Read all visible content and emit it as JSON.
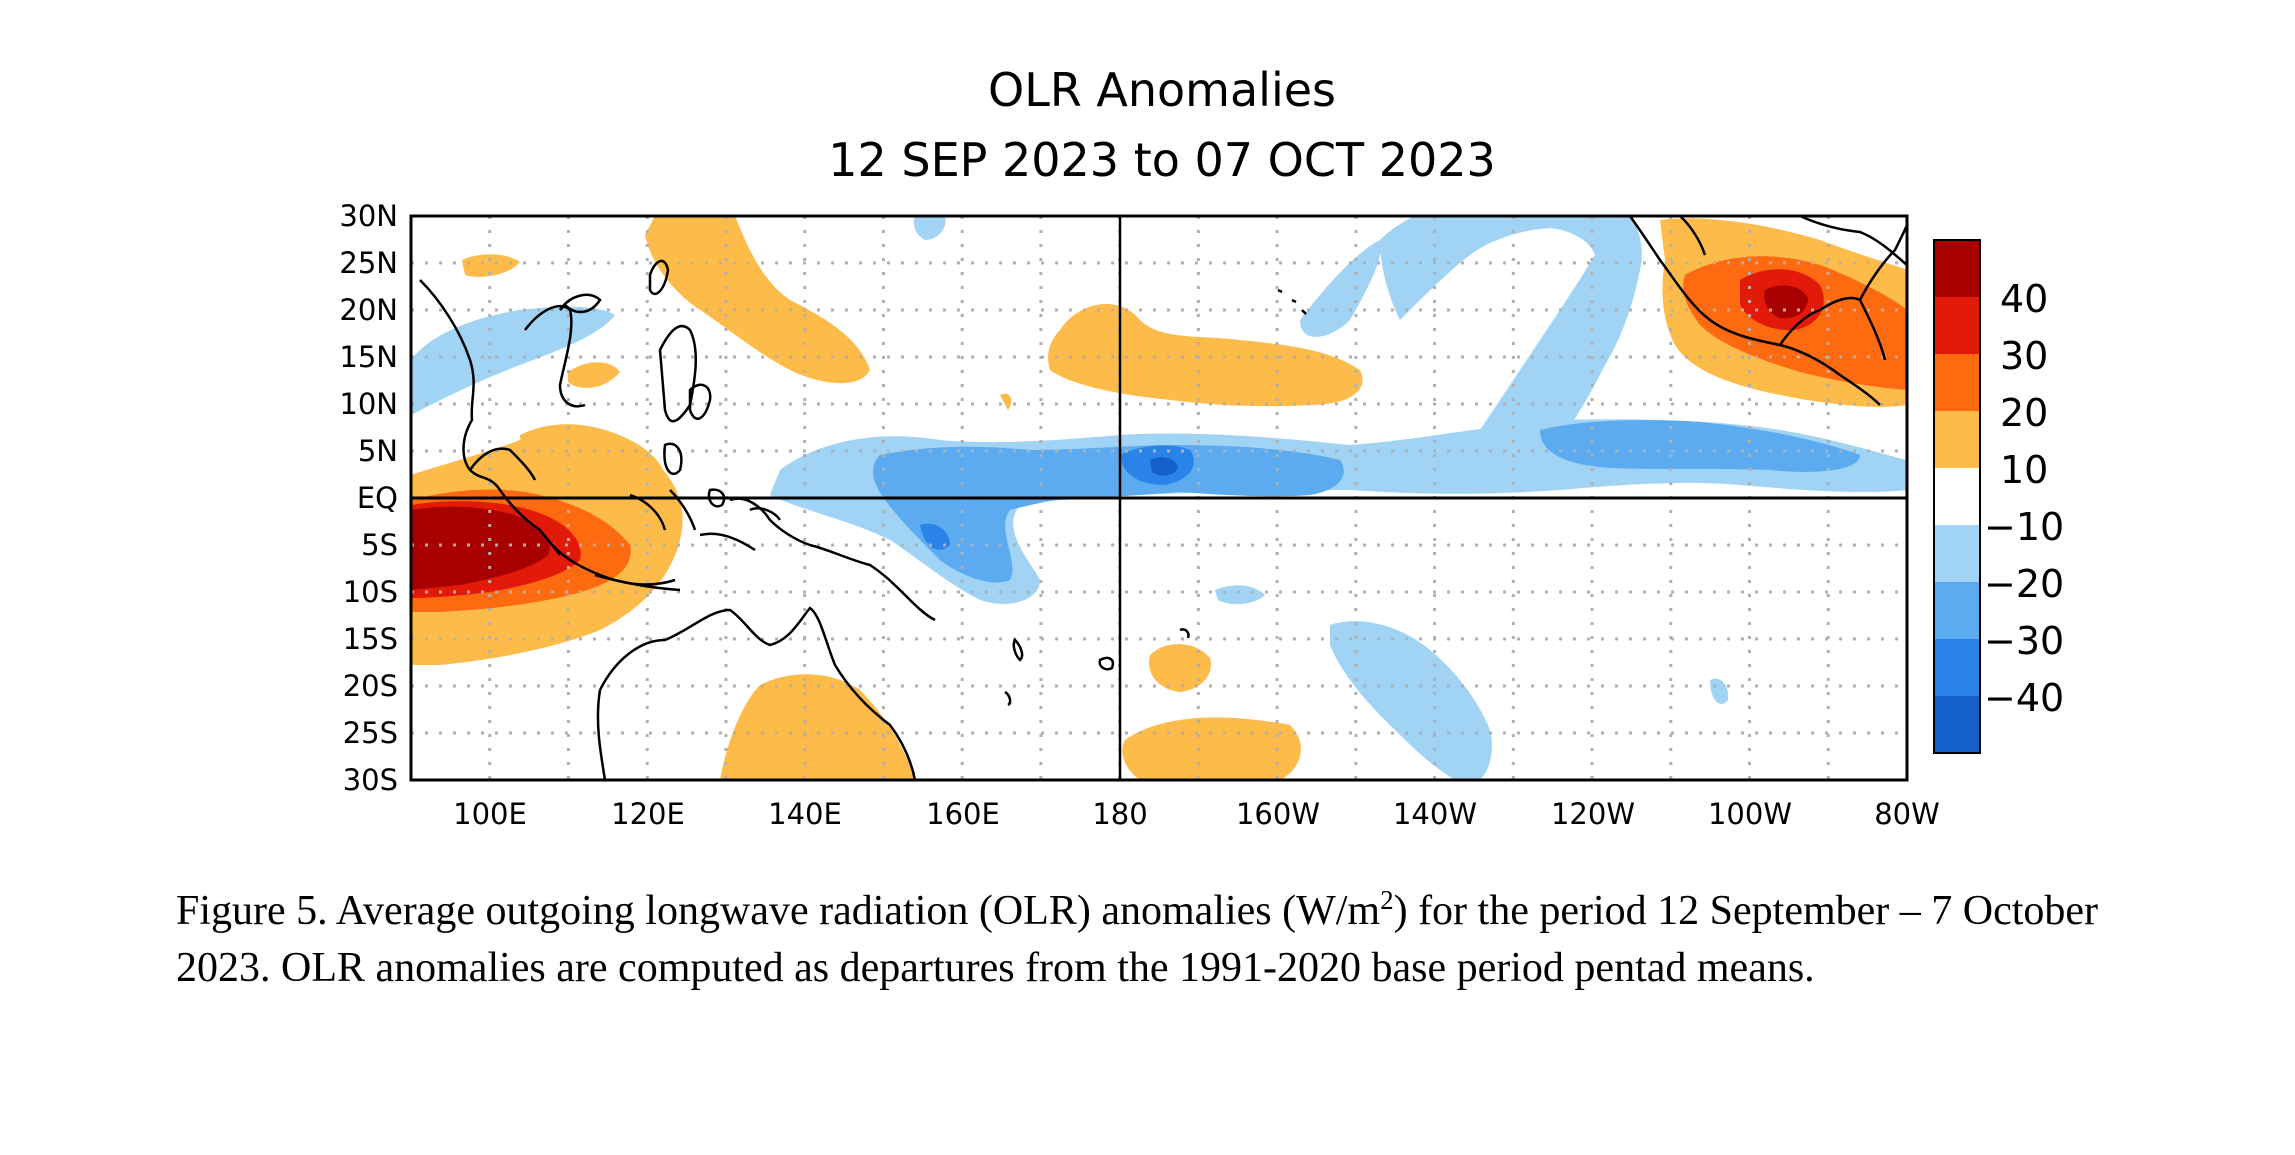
{
  "title": {
    "line1": "OLR Anomalies",
    "line2": "12 SEP 2023 to 07 OCT 2023"
  },
  "map": {
    "lat_labels": [
      "30N",
      "25N",
      "20N",
      "15N",
      "10N",
      "5N",
      "EQ",
      "5S",
      "10S",
      "15S",
      "20S",
      "25S",
      "30S"
    ],
    "lon_labels": [
      "100E",
      "120E",
      "140E",
      "160E",
      "180",
      "160W",
      "140W",
      "120W",
      "100W",
      "80W"
    ],
    "lat_range": [
      -30,
      30
    ],
    "lon_range_east": [
      90,
      280
    ],
    "grid": "dotted",
    "colors": {
      "pos_10_20": "#fdbb4a",
      "pos_20_30": "#fd6a10",
      "pos_30_40": "#e31a0a",
      "pos_40_plus": "#a80000",
      "neg_10_20": "#a1d3f5",
      "neg_20_30": "#5caaf0",
      "neg_30_40": "#2a83e6",
      "neg_40_plus": "#1360c8"
    }
  },
  "colorbar": {
    "labels": [
      "40",
      "30",
      "20",
      "10",
      "−10",
      "−20",
      "−30",
      "−40"
    ],
    "colors": [
      "#a80000",
      "#e31a0a",
      "#fd6a10",
      "#fdbb4a",
      "#ffffff",
      "#a1d3f5",
      "#5caaf0",
      "#2a83e6",
      "#1360c8"
    ]
  },
  "caption": {
    "part1": "Figure 5. Average outgoing longwave radiation (OLR) anomalies (W/m",
    "sup": "2",
    "part2": ") for the period 12 September –  7 October 2023.  OLR anomalies are computed as departures from the 1991-2020 base period pentad means."
  }
}
